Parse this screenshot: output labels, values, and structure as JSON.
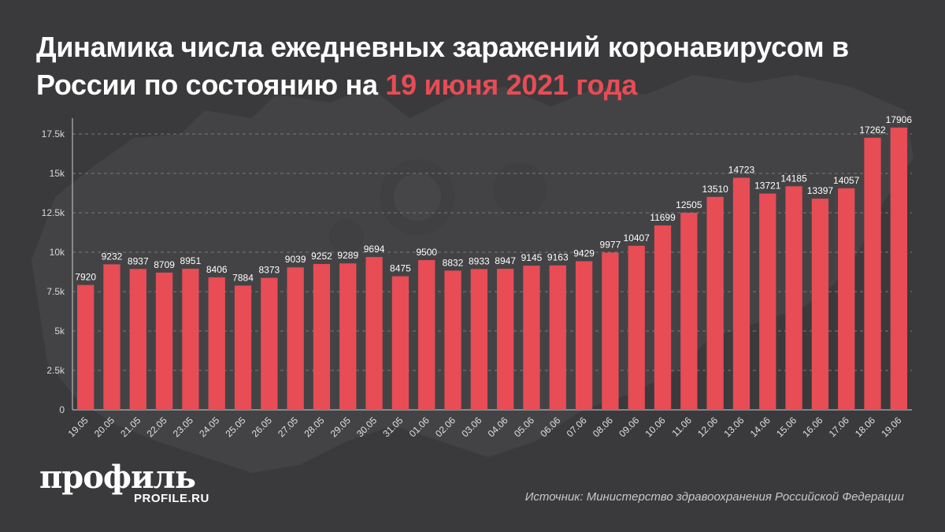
{
  "header": {
    "title_main": "Динамика числа ежедневных заражений коронавирусом в России по состоянию на ",
    "title_accent": "19 июня 2021 года"
  },
  "colors": {
    "background": "#3a3a3c",
    "bar": "#e84c55",
    "accent": "#e84c55",
    "text": "#ffffff"
  },
  "chart_data": {
    "type": "bar",
    "title": "Динамика числа ежедневных заражений коронавирусом в России по состоянию на 19 июня 2021 года",
    "categories": [
      "19.05",
      "20.05",
      "21.05",
      "22.05",
      "23.05",
      "24.05",
      "25.05",
      "26.05",
      "27.05",
      "28.05",
      "29.05",
      "30.05",
      "31.05",
      "01.06",
      "02.06",
      "03.06",
      "04.06",
      "05.06",
      "06.06",
      "07.06",
      "08.06",
      "09.06",
      "10.06",
      "11.06",
      "12.06",
      "13.06",
      "14.06",
      "15.06",
      "16.06",
      "17.06",
      "18.06",
      "19.06"
    ],
    "values": [
      7920,
      9232,
      8937,
      8709,
      8951,
      8406,
      7884,
      8373,
      9039,
      9252,
      9289,
      9694,
      8475,
      9500,
      8832,
      8933,
      8947,
      9145,
      9163,
      9429,
      9977,
      10407,
      11699,
      12505,
      13510,
      14723,
      13721,
      14185,
      13397,
      14057,
      17262,
      17906
    ],
    "ylim": [
      0,
      18500
    ],
    "yticks": [
      0,
      2500,
      5000,
      7500,
      10000,
      12500,
      15000,
      17500
    ],
    "ytick_labels": [
      "0",
      "2.5k",
      "5k",
      "7.5k",
      "10k",
      "12.5k",
      "15k",
      "17.5k"
    ],
    "grid": true,
    "xlabel": "",
    "ylabel": ""
  },
  "footer": {
    "logo_text": "профиль",
    "logo_site": "PROFILE.RU",
    "source": "Источник: Министерство здравоохранения Российской Федерации"
  }
}
